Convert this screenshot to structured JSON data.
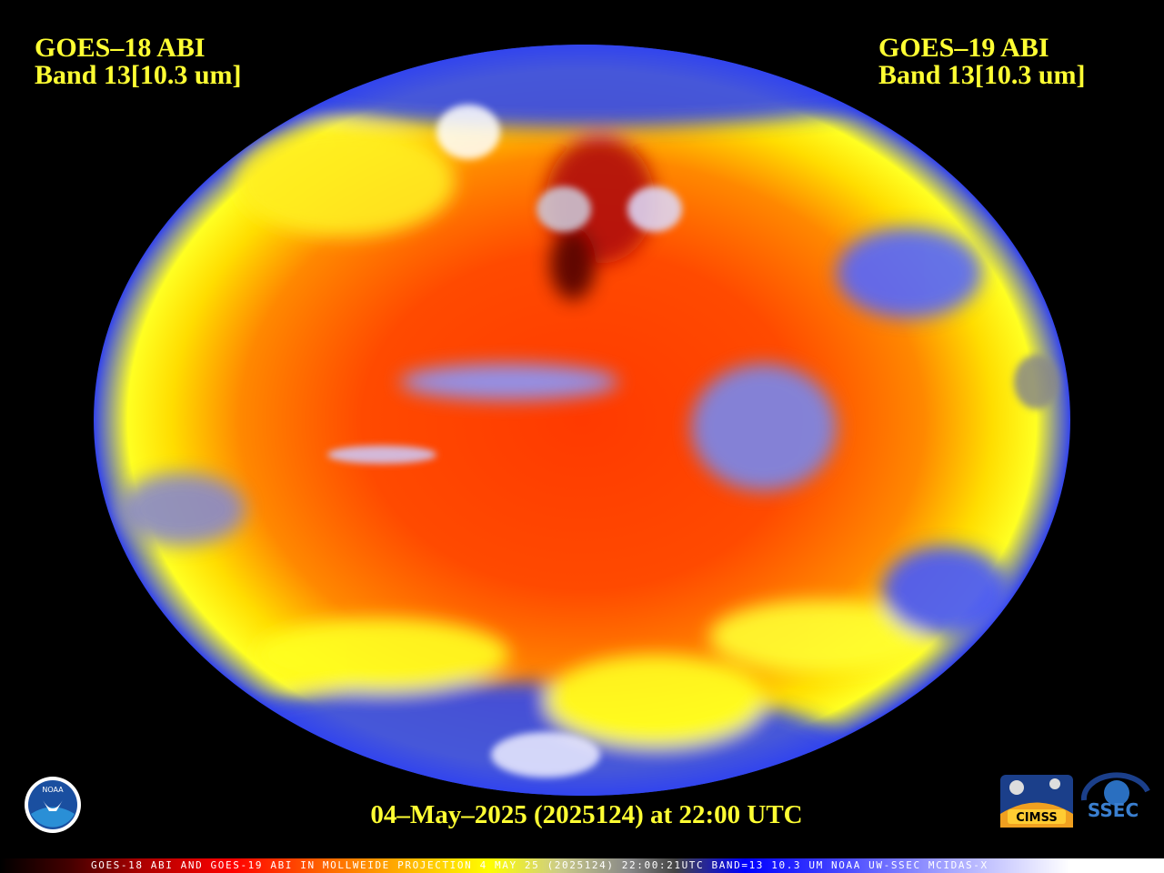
{
  "header_left": {
    "satellite": "GOES–18 ABI",
    "band": "Band 13[10.3 um]"
  },
  "header_right": {
    "satellite": "GOES–19 ABI",
    "band": "Band 13[10.3 um]"
  },
  "timestamp": "04–May–2025 (2025124) at 22:00 UTC",
  "footer": "GOES-18 ABI AND GOES-19 ABI IN MOLLWEIDE PROJECTION 4 MAY 25 (2025124) 22:00:21UTC BAND=13 10.3 UM NOAA UW-SSEC MCIDAS-X",
  "logos": {
    "noaa": "NOAA",
    "cimss": "CIMSS",
    "ssec": "SSEC"
  }
}
